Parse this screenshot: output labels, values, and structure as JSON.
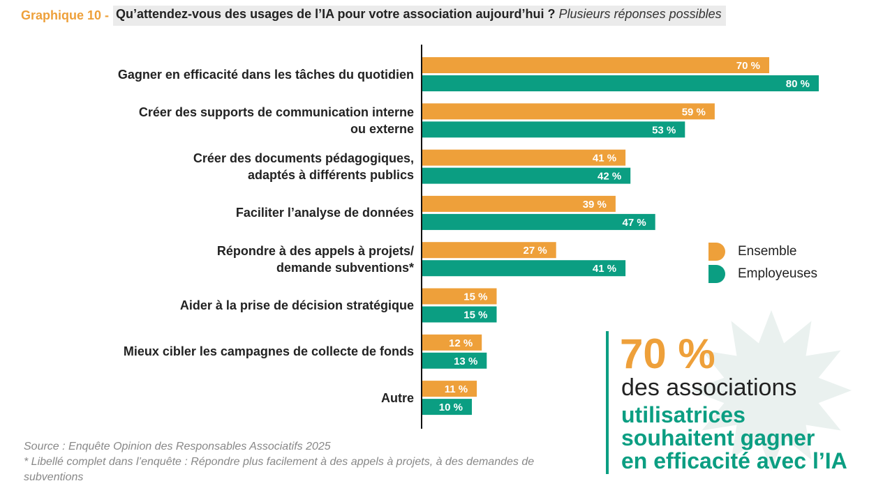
{
  "header": {
    "prefix": "Graphique 10 -",
    "question": "Qu’attendez-vous des usages de l’IA pour votre association aujourd’hui ?",
    "note": "Plusieurs réponses possibles"
  },
  "colors": {
    "ensemble": "#eea03a",
    "employeuses": "#0b9e82",
    "star": "#eaf1ef"
  },
  "chart_data": {
    "type": "bar",
    "orientation": "horizontal",
    "title": "Qu’attendez-vous des usages de l’IA pour votre association aujourd’hui ?",
    "categories": [
      [
        "Gagner en efficacité dans les tâches du quotidien"
      ],
      [
        "Créer des supports de communication interne",
        "ou externe"
      ],
      [
        "Créer des documents pédagogiques,",
        "adaptés à différents publics"
      ],
      [
        "Faciliter l’analyse de données"
      ],
      [
        "Répondre à des appels à projets/",
        "demande subventions*"
      ],
      [
        "Aider à la prise de décision stratégique"
      ],
      [
        "Mieux cibler les campagnes de collecte de fonds"
      ],
      [
        "Autre"
      ]
    ],
    "series": [
      {
        "name": "Ensemble",
        "values": [
          70,
          59,
          41,
          39,
          27,
          15,
          12,
          11
        ]
      },
      {
        "name": "Employeuses",
        "values": [
          80,
          53,
          42,
          47,
          41,
          15,
          13,
          10
        ]
      }
    ],
    "value_suffix": " %",
    "xlim": [
      0,
      80
    ],
    "legend_position": "right"
  },
  "legend": {
    "items": [
      "Ensemble",
      "Employeuses"
    ]
  },
  "callout": {
    "pct": "70 %",
    "line1": "des associations",
    "line2": [
      "utilisatrices",
      "souhaitent gagner",
      "en efficacité avec l’IA"
    ]
  },
  "footer": {
    "source": "Source : Enquête Opinion des Responsables Associatifs 2025",
    "note": "* Libellé complet dans l’enquête : Répondre plus facilement à des appels à projets, à des demandes de subventions"
  }
}
